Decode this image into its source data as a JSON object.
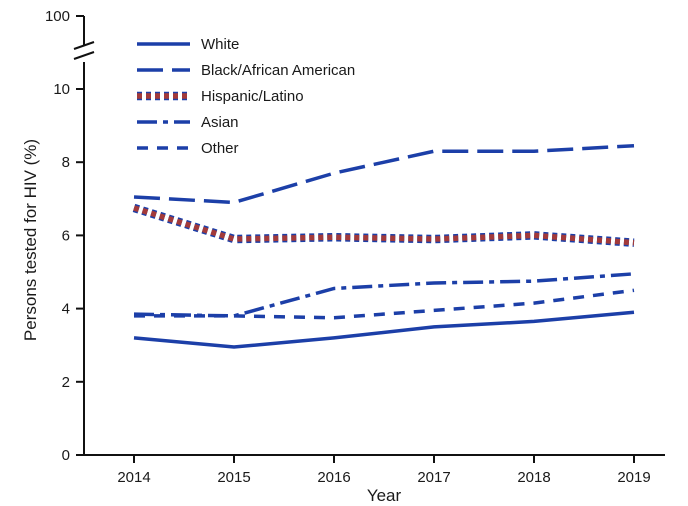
{
  "chart_data": {
    "type": "line",
    "title": "",
    "xlabel": "Year",
    "ylabel": "Persons tested for HIV (%)",
    "x": [
      2014,
      2015,
      2016,
      2017,
      2018,
      2019
    ],
    "x_tick_labels": [
      "2014",
      "2015",
      "2016",
      "2017",
      "2018",
      "2019"
    ],
    "ylim": [
      0,
      10
    ],
    "y_ticks": [
      0,
      2,
      4,
      6,
      8,
      10
    ],
    "y_tick_labels": [
      "0",
      "2",
      "4",
      "6",
      "8",
      "10"
    ],
    "y_axis_break": true,
    "y_break_top_label": "100",
    "grid": false,
    "legend_position": "top-left",
    "series": [
      {
        "name": "White",
        "values": [
          3.2,
          2.95,
          3.2,
          3.5,
          3.65,
          3.9
        ],
        "color": "#1c3fa8",
        "style": "solid"
      },
      {
        "name": "Black/African American",
        "values": [
          7.05,
          6.9,
          7.7,
          8.3,
          8.3,
          8.45
        ],
        "color": "#1c3fa8",
        "style": "dashed"
      },
      {
        "name": "Hispanic/Latino",
        "values": [
          6.75,
          5.9,
          5.95,
          5.9,
          6.0,
          5.8
        ],
        "color": "#a33a3a",
        "outline_color": "#1c3fa8",
        "style": "dotted"
      },
      {
        "name": "Asian",
        "values": [
          3.85,
          3.8,
          4.55,
          4.7,
          4.75,
          4.95
        ],
        "color": "#1c3fa8",
        "style": "dash-dot"
      },
      {
        "name": "Other",
        "values": [
          3.8,
          3.8,
          3.75,
          3.95,
          4.15,
          4.5
        ],
        "color": "#1c3fa8",
        "style": "short-dash"
      }
    ]
  }
}
